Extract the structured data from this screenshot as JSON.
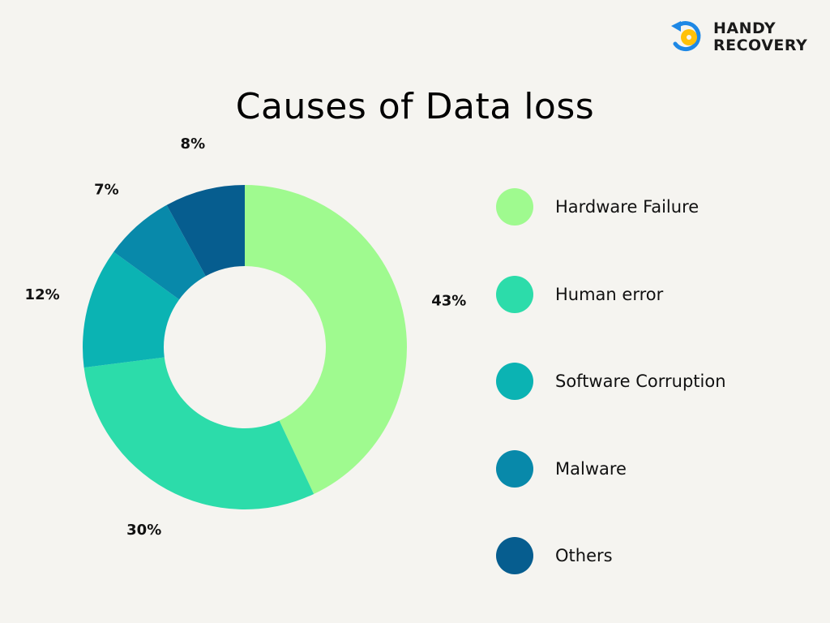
{
  "brand": {
    "line1": "HANDY",
    "line2": "RECOVERY"
  },
  "colors": {
    "background": "#f5f4f0",
    "logo_blue": "#1e88e5",
    "logo_yellow": "#ffc107"
  },
  "chart_data": {
    "type": "pie",
    "style": "donut",
    "title": "Causes of Data loss",
    "legend_position": "right",
    "categories": [
      "Hardware Failure",
      "Human error",
      "Software Corruption",
      "Malware",
      "Others"
    ],
    "values": [
      43,
      30,
      12,
      7,
      8
    ],
    "labels": [
      "43%",
      "30%",
      "12%",
      "7%",
      "8%"
    ],
    "colors": [
      "#9ffa8f",
      "#2cdcaa",
      "#0bb3b3",
      "#0889aa",
      "#065d8f"
    ]
  }
}
